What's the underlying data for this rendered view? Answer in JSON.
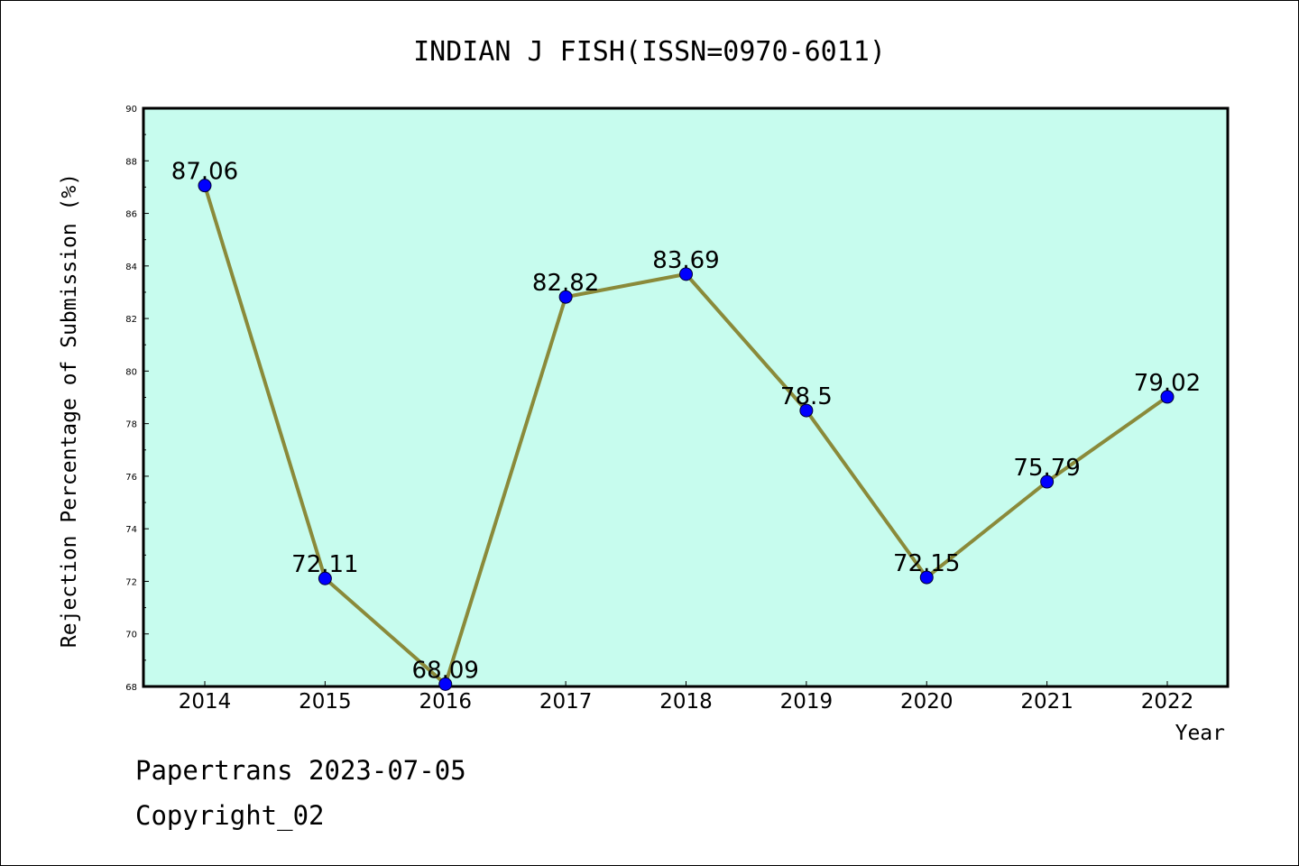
{
  "chart_data": {
    "type": "line",
    "title": "INDIAN J FISH(ISSN=0970-6011)",
    "xlabel": "Year",
    "ylabel": "Rejection Percentage of Submission (%)",
    "categories": [
      "2014",
      "2015",
      "2016",
      "2017",
      "2018",
      "2019",
      "2020",
      "2021",
      "2022"
    ],
    "values": [
      87.06,
      72.11,
      68.09,
      82.82,
      83.69,
      78.5,
      72.15,
      75.79,
      79.02
    ],
    "data_labels": [
      "87.06",
      "72.11",
      "68.09",
      "82.82",
      "83.69",
      "78.5",
      "72.15",
      "75.79",
      "79.02"
    ],
    "ylim": [
      68,
      90
    ],
    "yticks": [
      "68",
      "70",
      "72",
      "74",
      "76",
      "78",
      "80",
      "82",
      "84",
      "86",
      "88",
      "90"
    ],
    "colors": {
      "plot_background": "#c7fcee",
      "line": "#8a8a3a",
      "marker": "#0000ff"
    },
    "grid": false,
    "legend": "none"
  },
  "footer": {
    "line1": "Papertrans 2023-07-05",
    "line2": "Copyright_02"
  }
}
